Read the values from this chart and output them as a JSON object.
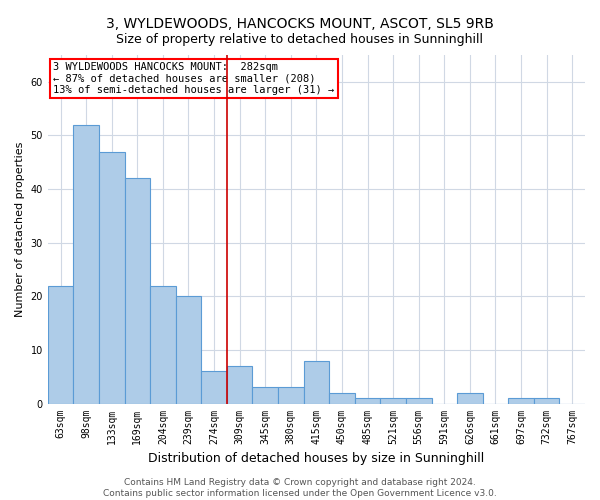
{
  "title": "3, WYLDEWOODS, HANCOCKS MOUNT, ASCOT, SL5 9RB",
  "subtitle": "Size of property relative to detached houses in Sunninghill",
  "xlabel": "Distribution of detached houses by size in Sunninghill",
  "ylabel": "Number of detached properties",
  "categories": [
    "63sqm",
    "98sqm",
    "133sqm",
    "169sqm",
    "204sqm",
    "239sqm",
    "274sqm",
    "309sqm",
    "345sqm",
    "380sqm",
    "415sqm",
    "450sqm",
    "485sqm",
    "521sqm",
    "556sqm",
    "591sqm",
    "626sqm",
    "661sqm",
    "697sqm",
    "732sqm",
    "767sqm"
  ],
  "bar_heights": [
    22,
    52,
    47,
    42,
    22,
    20,
    6,
    7,
    3,
    3,
    8,
    2,
    1,
    1,
    1,
    0,
    2,
    0,
    1,
    1,
    0
  ],
  "bar_color": "#aecce8",
  "bar_edge_color": "#5b9bd5",
  "grid_color": "#d0d8e4",
  "background_color": "#ffffff",
  "vline_x_index": 6,
  "vline_color": "#cc0000",
  "annotation_line1": "3 WYLDEWOODS HANCOCKS MOUNT:  282sqm",
  "annotation_line2": "← 87% of detached houses are smaller (208)",
  "annotation_line3": "13% of semi-detached houses are larger (31) →",
  "annotation_fontsize": 7.5,
  "footer_text": "Contains HM Land Registry data © Crown copyright and database right 2024.\nContains public sector information licensed under the Open Government Licence v3.0.",
  "ylim": [
    0,
    65
  ],
  "title_fontsize": 10,
  "subtitle_fontsize": 9,
  "xlabel_fontsize": 9,
  "ylabel_fontsize": 8,
  "tick_fontsize": 7,
  "footer_fontsize": 6.5
}
